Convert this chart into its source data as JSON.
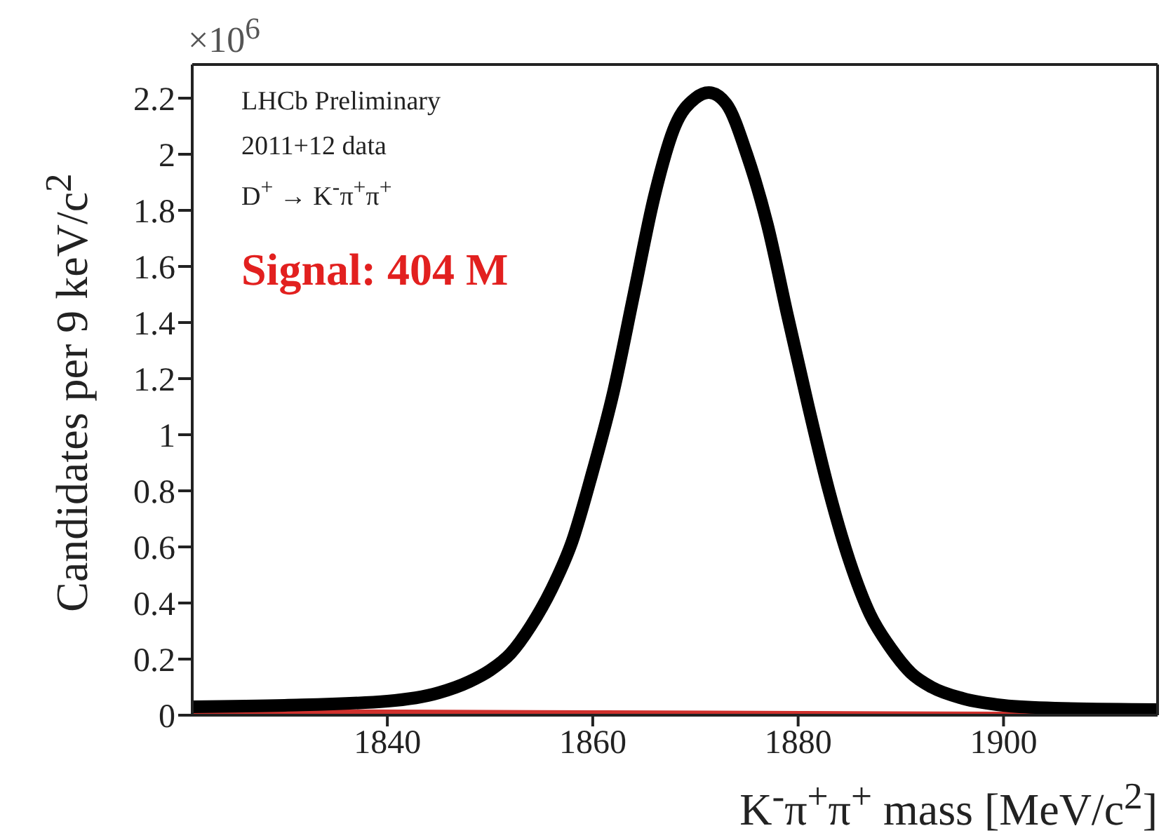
{
  "chart_data": {
    "type": "line",
    "xlabel": "K$^{-}$π$^{+}$π$^{+}$ mass [MeV/c$^{2}$]",
    "ylabel": "Candidates per 9 keV/c$^{2}$",
    "annotations": [
      "×10$^{6}$",
      "LHCb Preliminary",
      "2011+12 data",
      "D$^{+}$ → K$^{-}$π$^{+}$π$^{+}$",
      "Signal: 404 M"
    ],
    "xlim": [
      1821,
      1915
    ],
    "xticks": [
      1840,
      1860,
      1880,
      1900
    ],
    "ylim": [
      0,
      2.32
    ],
    "yticks": [
      0,
      0.2,
      0.4,
      0.6,
      0.8,
      1,
      1.2,
      1.4,
      1.6,
      1.8,
      2,
      2.2
    ],
    "marker": "none",
    "line_style": "solid",
    "series": [
      {
        "type": "area",
        "color": "#d0312d",
        "x": [
          1821,
          1860,
          1900,
          1905
        ],
        "values": [
          0.02,
          0.015,
          0.01,
          0
        ]
      },
      {
        "color": "#000000",
        "x": [
          1821,
          1830,
          1840,
          1845,
          1848,
          1850,
          1852,
          1854,
          1856,
          1858,
          1860,
          1862,
          1864,
          1866,
          1868,
          1870,
          1871.3,
          1873,
          1875,
          1877,
          1879,
          1881,
          1883,
          1885,
          1887,
          1889,
          1891,
          1893,
          1896,
          1900,
          1905,
          1915
        ],
        "values": [
          0.03,
          0.035,
          0.05,
          0.08,
          0.12,
          0.16,
          0.22,
          0.32,
          0.45,
          0.62,
          0.87,
          1.15,
          1.5,
          1.85,
          2.1,
          2.2,
          2.22,
          2.18,
          2,
          1.75,
          1.42,
          1.1,
          0.8,
          0.55,
          0.36,
          0.24,
          0.15,
          0.1,
          0.06,
          0.035,
          0.025,
          0.02
        ]
      }
    ]
  }
}
